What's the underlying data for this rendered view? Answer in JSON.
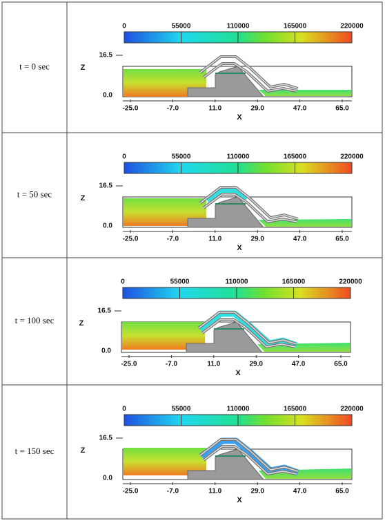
{
  "table": {
    "rows": [
      {
        "label": "t = 0 sec",
        "colorbar_ticks": [
          "0",
          "55000",
          "110000",
          "165000",
          "220000"
        ],
        "z_label": "Z",
        "z_ticks": [
          "16.5",
          "0.0"
        ],
        "x_label": "X",
        "x_ticks": [
          "-25.0",
          "-7.0",
          "11.0",
          "29.0",
          "47.0",
          "65.0"
        ]
      },
      {
        "label": "t = 50 sec",
        "colorbar_ticks": [
          "0",
          "55000",
          "110000",
          "165000",
          "220000"
        ],
        "z_label": "Z",
        "z_ticks": [
          "16.5",
          "0.0"
        ],
        "x_label": "X",
        "x_ticks": [
          "-25.0",
          "-7.0",
          "11.0",
          "29.0",
          "47.0",
          "65.0"
        ]
      },
      {
        "label": "t = 100 sec",
        "colorbar_ticks": [
          "0",
          "55000",
          "110000",
          "165000",
          "220000"
        ],
        "z_label": "Z",
        "z_ticks": [
          "16.5",
          "0.0"
        ],
        "x_label": "X",
        "x_ticks": [
          "-25.0",
          "-7.0",
          "11.0",
          "29.0",
          "47.0",
          "65.0"
        ]
      },
      {
        "label": "t = 150 sec",
        "colorbar_ticks": [
          "0",
          "55000",
          "110000",
          "165000",
          "220000"
        ],
        "z_label": "Z",
        "z_ticks": [
          "16.5",
          "0.0"
        ],
        "x_label": "X",
        "x_ticks": [
          "-25.0",
          "-7.0",
          "11.0",
          "29.0",
          "47.0",
          "65.0"
        ]
      }
    ]
  }
}
